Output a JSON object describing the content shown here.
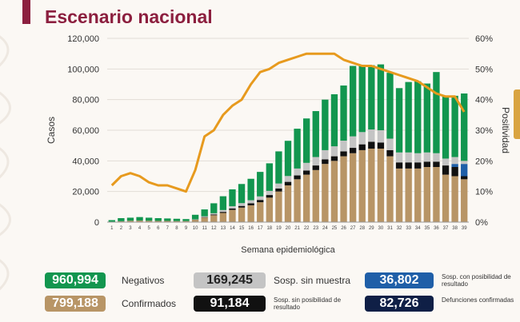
{
  "title": "Escenario nacional",
  "chart_data": {
    "type": "bar",
    "stacked": true,
    "xlabel": "Semana epidemiológica",
    "ylabel": "Casos",
    "y2label": "Positividad",
    "ylim": [
      0,
      120000
    ],
    "y2lim": [
      0,
      60
    ],
    "yticks": [
      "0",
      "20,000",
      "40,000",
      "60,000",
      "80,000",
      "100,000",
      "120,000"
    ],
    "y2ticks": [
      "0%",
      "10%",
      "20%",
      "30%",
      "40%",
      "50%",
      "60%"
    ],
    "categories": [
      "1",
      "2",
      "3",
      "4",
      "5",
      "6",
      "7",
      "8",
      "9",
      "10",
      "11",
      "12",
      "13",
      "14",
      "15",
      "16",
      "17",
      "18",
      "19",
      "20",
      "21",
      "22",
      "23",
      "24",
      "25",
      "26",
      "27",
      "28",
      "29",
      "30",
      "31",
      "32",
      "33",
      "34",
      "35",
      "36",
      "37",
      "38",
      "39"
    ],
    "series": [
      {
        "key": "confirmados",
        "color": "#b89566",
        "values": [
          300,
          600,
          900,
          1000,
          900,
          800,
          800,
          700,
          700,
          1500,
          3000,
          4500,
          6000,
          8000,
          9500,
          11000,
          13000,
          16000,
          20000,
          24000,
          28000,
          31000,
          34000,
          38000,
          40000,
          43000,
          45000,
          47000,
          48000,
          48000,
          43000,
          35000,
          35000,
          35000,
          36000,
          36000,
          31000,
          30000,
          28000
        ]
      },
      {
        "key": "sin_posibilidad",
        "color": "#111111",
        "values": [
          0,
          0,
          0,
          0,
          0,
          0,
          0,
          0,
          0,
          100,
          300,
          500,
          700,
          900,
          1100,
          1300,
          1500,
          1700,
          2000,
          2300,
          2500,
          2700,
          3000,
          3000,
          3000,
          3200,
          3500,
          3800,
          4500,
          4000,
          4000,
          4000,
          4000,
          4000,
          3500,
          3500,
          6000,
          6000,
          2000
        ]
      },
      {
        "key": "con_posibilidad",
        "color": "#1f5fa8",
        "values": [
          0,
          0,
          0,
          0,
          0,
          0,
          0,
          0,
          0,
          0,
          0,
          0,
          0,
          0,
          0,
          0,
          0,
          0,
          0,
          0,
          0,
          0,
          0,
          0,
          0,
          0,
          0,
          0,
          0,
          0,
          0,
          0,
          0,
          0,
          0,
          0,
          0,
          2000,
          8000
        ]
      },
      {
        "key": "sin_muestra",
        "color": "#c4c4c4",
        "values": [
          0,
          0,
          0,
          0,
          0,
          0,
          0,
          0,
          0,
          200,
          500,
          800,
          1200,
          1500,
          1800,
          2000,
          2300,
          2700,
          3200,
          3800,
          4500,
          5000,
          5500,
          6000,
          6500,
          7000,
          7500,
          8000,
          8000,
          8000,
          7500,
          6500,
          6500,
          6000,
          6000,
          5500,
          4500,
          4500,
          2000
        ]
      },
      {
        "key": "negativos",
        "color": "#12964f",
        "values": [
          1000,
          2000,
          2000,
          2300,
          2000,
          1800,
          1600,
          1500,
          1300,
          3000,
          4500,
          6500,
          9000,
          11000,
          12500,
          14000,
          16000,
          18000,
          21000,
          23000,
          26000,
          29000,
          30000,
          33000,
          34000,
          36000,
          46000,
          44000,
          42000,
          43000,
          43000,
          42000,
          46000,
          47000,
          45000,
          53000,
          41000,
          40000,
          44000
        ]
      }
    ],
    "positividad": [
      12,
      15,
      16,
      15,
      13,
      12,
      12,
      11,
      10,
      17,
      28,
      30,
      35,
      38,
      40,
      45,
      49,
      50,
      52,
      53,
      54,
      55,
      55,
      55,
      55,
      53,
      52,
      51,
      51,
      50,
      49,
      48,
      47,
      46,
      44,
      42,
      41,
      41,
      36
    ]
  },
  "legend": [
    {
      "value": "960,994",
      "label": "Negativos",
      "color": "#12964f"
    },
    {
      "value": "169,245",
      "label": "Sosp. sin muestra",
      "color": "#c4c4c4"
    },
    {
      "value": "36,802",
      "label": "Sosp. con posibilidad de resultado",
      "color": "#1f5fa8"
    },
    {
      "value": "799,188",
      "label": "Confirmados",
      "color": "#b89566"
    },
    {
      "value": "91,184",
      "label": "Sosp. sin posibilidad de resultado",
      "color": "#111111"
    },
    {
      "value": "82,726",
      "label": "Defunciones confirmadas",
      "color": "#0f1f46"
    }
  ],
  "line_color": "#e79a1e"
}
